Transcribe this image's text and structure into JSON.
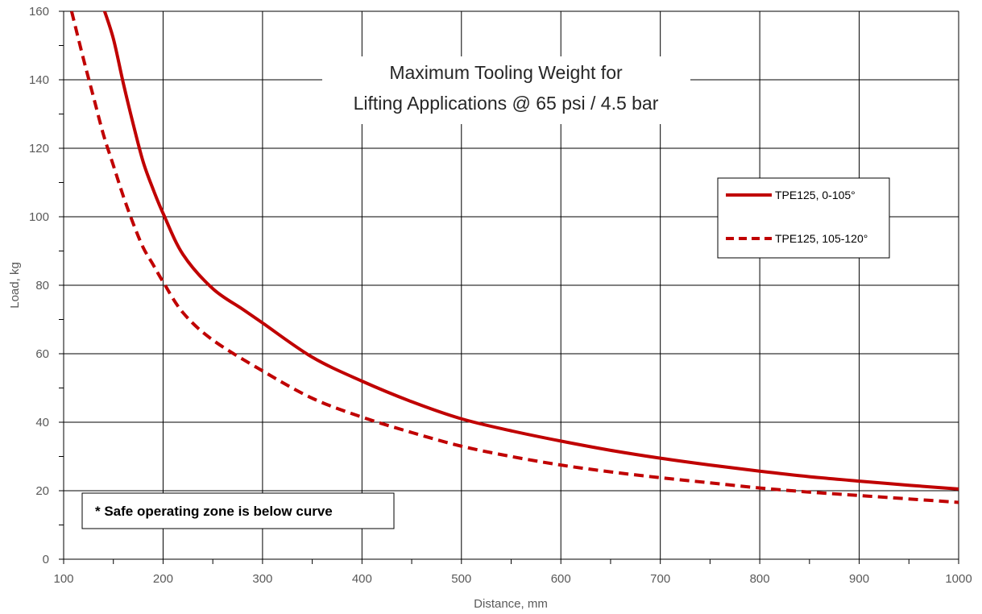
{
  "colors": {
    "series": "#c00000",
    "grid": "#000000",
    "text": "#595959"
  },
  "chart_data": {
    "type": "line",
    "title_lines": [
      "Maximum Tooling Weight for",
      "Lifting Applications @ 65 psi / 4.5 bar"
    ],
    "xlabel": "Distance, mm",
    "ylabel": "Load, kg",
    "xlim": [
      100,
      1000
    ],
    "ylim": [
      0,
      160
    ],
    "x_ticks": [
      100,
      200,
      300,
      400,
      500,
      600,
      700,
      800,
      900,
      1000
    ],
    "y_ticks": [
      0,
      20,
      40,
      60,
      80,
      100,
      120,
      140,
      160
    ],
    "grid": true,
    "legend_position": "upper-right",
    "note": "* Safe operating zone is below curve",
    "series": [
      {
        "name": "TPE125, 0-105°",
        "line_style": "solid",
        "x": [
          140,
          150,
          160,
          170,
          180,
          190,
          200,
          220,
          250,
          280,
          300,
          350,
          400,
          450,
          500,
          550,
          600,
          650,
          700,
          750,
          800,
          850,
          900,
          950,
          1000
        ],
        "y": [
          161,
          152,
          139,
          127,
          116,
          108,
          101,
          89,
          79,
          73,
          69,
          59,
          52,
          46,
          41,
          37.5,
          34.5,
          31.8,
          29.5,
          27.5,
          25.7,
          24.1,
          22.8,
          21.6,
          20.5
        ]
      },
      {
        "name": "TPE125, 105-120°",
        "line_style": "dashed",
        "x": [
          108,
          120,
          130,
          140,
          150,
          160,
          170,
          180,
          190,
          200,
          220,
          250,
          300,
          350,
          400,
          450,
          500,
          550,
          600,
          650,
          700,
          750,
          800,
          850,
          900,
          950,
          1000
        ],
        "y": [
          160,
          146,
          135,
          124,
          115,
          106,
          98,
          91,
          86,
          81,
          72,
          64,
          55,
          47,
          41.5,
          37,
          33,
          30,
          27.5,
          25.5,
          23.8,
          22.3,
          20.8,
          19.6,
          18.6,
          17.6,
          16.6
        ]
      }
    ]
  }
}
